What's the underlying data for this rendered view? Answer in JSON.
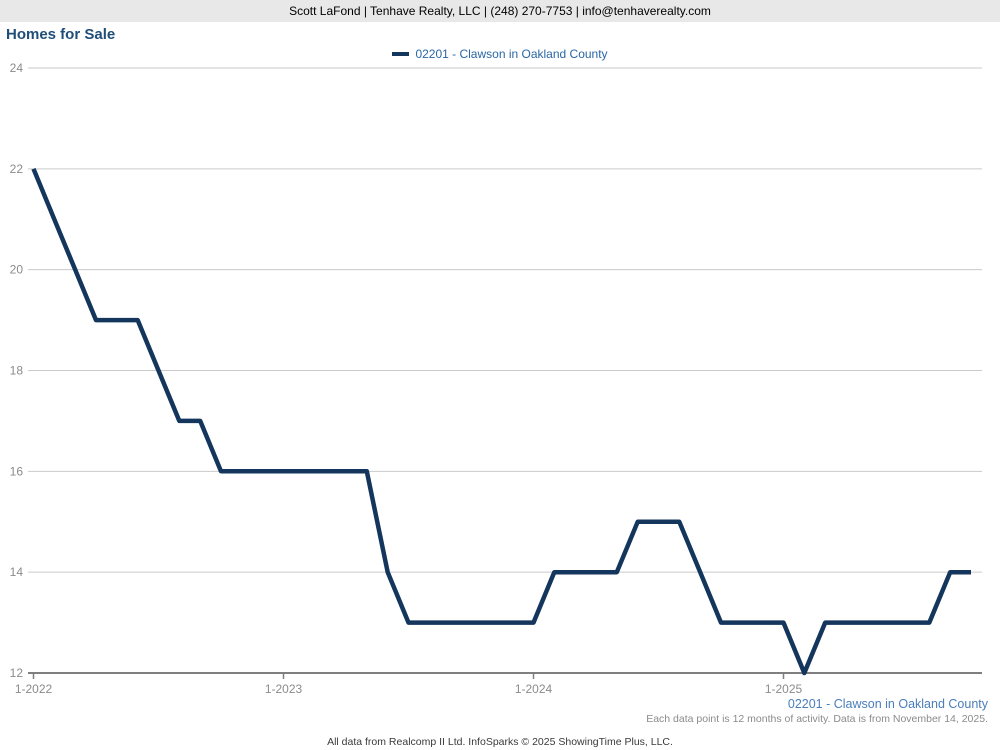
{
  "header": {
    "contact_line": "Scott LaFond | Tenhave Realty, LLC | (248) 270-7753 | info@tenhaverealty.com"
  },
  "title": "Homes for Sale",
  "legend": {
    "label": "02201 - Clawson in Oakland County",
    "swatch_color": "#14365c"
  },
  "footer": {
    "series_label": "02201 - Clawson in Oakland County",
    "data_note": "Each data point is 12 months of activity. Data is from November 14, 2025.",
    "attribution": "All data from Realcomp II Ltd. InfoSparks © 2025 ShowingTime Plus, LLC."
  },
  "colors": {
    "line": "#14365c",
    "gridline": "#cacaca",
    "axis": "#7f7f7f",
    "axis_label": "#8b8b8b",
    "title_blue": "#1f4e79",
    "footer_blue": "#4a7ebb",
    "header_bg": "#e8e8e8"
  },
  "chart_data": {
    "type": "line",
    "title": "Homes for Sale",
    "xlabel": "",
    "ylabel": "",
    "ylim": [
      12,
      24
    ],
    "y_ticks": [
      12,
      14,
      16,
      18,
      20,
      22,
      24
    ],
    "grid": "horizontal",
    "legend_position": "top-center",
    "x_tick_labels": [
      "1-2022",
      "1-2023",
      "1-2024",
      "1-2025"
    ],
    "x": [
      "1-2022",
      "2-2022",
      "3-2022",
      "4-2022",
      "5-2022",
      "6-2022",
      "7-2022",
      "8-2022",
      "9-2022",
      "10-2022",
      "11-2022",
      "12-2022",
      "1-2023",
      "2-2023",
      "3-2023",
      "4-2023",
      "5-2023",
      "6-2023",
      "7-2023",
      "8-2023",
      "9-2023",
      "10-2023",
      "11-2023",
      "12-2023",
      "1-2024",
      "2-2024",
      "3-2024",
      "4-2024",
      "5-2024",
      "6-2024",
      "7-2024",
      "8-2024",
      "9-2024",
      "10-2024",
      "11-2024",
      "12-2024",
      "1-2025",
      "2-2025",
      "3-2025",
      "4-2025",
      "5-2025",
      "6-2025",
      "7-2025",
      "8-2025",
      "9-2025",
      "10-2025"
    ],
    "series": [
      {
        "name": "02201 - Clawson in Oakland County",
        "color": "#14365c",
        "values": [
          22,
          21,
          20,
          19,
          19,
          19,
          18,
          17,
          17,
          16,
          16,
          16,
          16,
          16,
          16,
          16,
          16,
          14,
          13,
          13,
          13,
          13,
          13,
          13,
          13,
          14,
          14,
          14,
          14,
          15,
          15,
          15,
          14,
          13,
          13,
          13,
          13,
          12,
          13,
          13,
          13,
          13,
          13,
          13,
          14,
          14
        ]
      }
    ]
  }
}
